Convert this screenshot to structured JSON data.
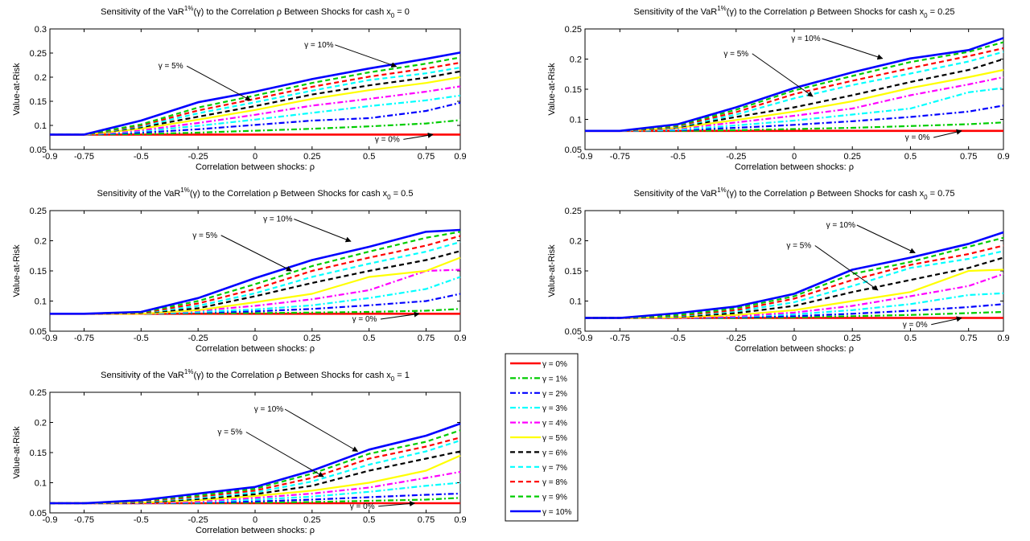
{
  "legend": {
    "entries": [
      "γ = 0%",
      "γ = 1%",
      "γ = 2%",
      "γ = 3%",
      "γ = 4%",
      "γ = 5%",
      "γ = 6%",
      "γ = 7%",
      "γ = 8%",
      "γ = 9%",
      "γ = 10%"
    ],
    "colors": [
      "#ff0000",
      "#00cc00",
      "#0000ff",
      "#00ffff",
      "#ff00ff",
      "#ffff00",
      "#000000",
      "#00ffff",
      "#ff0000",
      "#00cc00",
      "#0000ff"
    ],
    "dashes": [
      "solid",
      "dashdot",
      "dashdot",
      "dashdot",
      "dashdot",
      "solid",
      "dashed",
      "dashed",
      "dashed",
      "dashed",
      "solid"
    ]
  },
  "chart_data": [
    {
      "type": "line",
      "title_prefix": "Sensitivity of the VaR",
      "title_sup": "1%",
      "title_mid": "(γ) to the Correlation ρ Between Shocks for cash x",
      "title_sub": "0",
      "title_suffix": " = 0",
      "xlabel": "Correlation between shocks: ρ",
      "ylabel": "Value-at-Risk",
      "xlim": [
        -0.9,
        0.9
      ],
      "ylim": [
        0.05,
        0.3
      ],
      "xticks": [
        "-0.9",
        "-0.75",
        "-0.5",
        "-0.25",
        "0",
        "0.25",
        "0.5",
        "0.75",
        "0.9"
      ],
      "yticks": [
        "0.05",
        "0.1",
        "0.15",
        "0.2",
        "0.25",
        "0.3"
      ],
      "x": [
        -0.9,
        -0.75,
        -0.5,
        -0.25,
        0,
        0.25,
        0.5,
        0.75,
        0.9
      ],
      "series": [
        {
          "values": [
            0.081,
            0.081,
            0.081,
            0.081,
            0.081,
            0.081,
            0.081,
            0.081,
            0.081
          ]
        },
        {
          "values": [
            0.081,
            0.081,
            0.082,
            0.085,
            0.089,
            0.093,
            0.098,
            0.104,
            0.111
          ]
        },
        {
          "values": [
            0.081,
            0.081,
            0.085,
            0.092,
            0.101,
            0.11,
            0.115,
            0.13,
            0.147
          ]
        },
        {
          "values": [
            0.081,
            0.081,
            0.088,
            0.099,
            0.112,
            0.126,
            0.14,
            0.152,
            0.162
          ]
        },
        {
          "values": [
            0.081,
            0.081,
            0.09,
            0.105,
            0.122,
            0.141,
            0.155,
            0.17,
            0.181
          ]
        },
        {
          "values": [
            0.081,
            0.081,
            0.093,
            0.112,
            0.132,
            0.155,
            0.173,
            0.188,
            0.2
          ]
        },
        {
          "values": [
            0.081,
            0.081,
            0.096,
            0.118,
            0.14,
            0.164,
            0.183,
            0.199,
            0.212
          ]
        },
        {
          "values": [
            0.081,
            0.081,
            0.098,
            0.125,
            0.148,
            0.172,
            0.194,
            0.208,
            0.22
          ]
        },
        {
          "values": [
            0.081,
            0.081,
            0.1,
            0.131,
            0.155,
            0.18,
            0.201,
            0.218,
            0.23
          ]
        },
        {
          "values": [
            0.081,
            0.081,
            0.102,
            0.137,
            0.162,
            0.188,
            0.21,
            0.228,
            0.241
          ]
        },
        {
          "values": [
            0.081,
            0.081,
            0.11,
            0.148,
            0.17,
            0.196,
            0.218,
            0.238,
            0.251
          ]
        }
      ],
      "annotations": [
        {
          "text": "γ = 10%",
          "x": 0.28,
          "y": 0.262,
          "ax": 0.62,
          "ay": 0.222
        },
        {
          "text": "γ = 5%",
          "x": -0.37,
          "y": 0.218,
          "ax": -0.02,
          "ay": 0.152
        },
        {
          "text": "γ = 0%",
          "x": 0.58,
          "y": 0.066,
          "ax": 0.78,
          "ay": 0.081
        }
      ]
    },
    {
      "type": "line",
      "title_prefix": "Sensitivity of the VaR",
      "title_sup": "1%",
      "title_mid": "(γ) to the Correlation ρ Between Shocks for cash x",
      "title_sub": "0",
      "title_suffix": " = 0.25",
      "xlabel": "Correlation between shocks: ρ",
      "ylabel": "Value-at-Risk",
      "xlim": [
        -0.9,
        0.9
      ],
      "ylim": [
        0.05,
        0.25
      ],
      "xticks": [
        "-0.9",
        "-0.75",
        "-0.5",
        "-0.25",
        "0",
        "0.25",
        "0.5",
        "0.75",
        "0.9"
      ],
      "yticks": [
        "0.05",
        "0.1",
        "0.15",
        "0.2",
        "0.25"
      ],
      "x": [
        -0.9,
        -0.75,
        -0.5,
        -0.25,
        0,
        0.25,
        0.5,
        0.75,
        0.9
      ],
      "series": [
        {
          "values": [
            0.081,
            0.081,
            0.081,
            0.081,
            0.081,
            0.081,
            0.081,
            0.081,
            0.081
          ]
        },
        {
          "values": [
            0.081,
            0.081,
            0.081,
            0.082,
            0.084,
            0.086,
            0.089,
            0.092,
            0.095
          ]
        },
        {
          "values": [
            0.081,
            0.081,
            0.082,
            0.086,
            0.091,
            0.097,
            0.104,
            0.113,
            0.123
          ]
        },
        {
          "values": [
            0.081,
            0.081,
            0.083,
            0.09,
            0.098,
            0.108,
            0.118,
            0.145,
            0.152
          ]
        },
        {
          "values": [
            0.081,
            0.081,
            0.085,
            0.095,
            0.106,
            0.118,
            0.14,
            0.158,
            0.17
          ]
        },
        {
          "values": [
            0.081,
            0.081,
            0.086,
            0.099,
            0.113,
            0.13,
            0.152,
            0.17,
            0.182
          ]
        },
        {
          "values": [
            0.081,
            0.081,
            0.087,
            0.104,
            0.12,
            0.14,
            0.162,
            0.182,
            0.2
          ]
        },
        {
          "values": [
            0.081,
            0.081,
            0.088,
            0.108,
            0.135,
            0.157,
            0.176,
            0.196,
            0.212
          ]
        },
        {
          "values": [
            0.081,
            0.081,
            0.089,
            0.112,
            0.142,
            0.164,
            0.185,
            0.205,
            0.218
          ]
        },
        {
          "values": [
            0.081,
            0.081,
            0.09,
            0.116,
            0.148,
            0.172,
            0.195,
            0.212,
            0.228
          ]
        },
        {
          "values": [
            0.081,
            0.081,
            0.092,
            0.12,
            0.152,
            0.178,
            0.201,
            0.215,
            0.235
          ]
        }
      ],
      "annotations": [
        {
          "text": "γ = 10%",
          "x": 0.05,
          "y": 0.23,
          "ax": 0.38,
          "ay": 0.201
        },
        {
          "text": "γ = 5%",
          "x": -0.25,
          "y": 0.205,
          "ax": 0.08,
          "ay": 0.138
        },
        {
          "text": "γ = 0%",
          "x": 0.53,
          "y": 0.066,
          "ax": 0.72,
          "ay": 0.081
        }
      ]
    },
    {
      "type": "line",
      "title_prefix": "Sensitivity of the VaR",
      "title_sup": "1%",
      "title_mid": "(γ) to the Correlation ρ Between Shocks for cash x",
      "title_sub": "0",
      "title_suffix": " = 0.5",
      "xlabel": "Correlation between shocks: ρ",
      "ylabel": "Value-at-Risk",
      "xlim": [
        -0.9,
        0.9
      ],
      "ylim": [
        0.05,
        0.25
      ],
      "xticks": [
        "-0.9",
        "-0.75",
        "-0.5",
        "-0.25",
        "0",
        "0.25",
        "0.5",
        "0.75",
        "0.9"
      ],
      "yticks": [
        "0.05",
        "0.1",
        "0.15",
        "0.2",
        "0.25"
      ],
      "x": [
        -0.9,
        -0.75,
        -0.5,
        -0.25,
        0,
        0.25,
        0.5,
        0.75,
        0.9
      ],
      "series": [
        {
          "values": [
            0.079,
            0.079,
            0.079,
            0.079,
            0.079,
            0.079,
            0.079,
            0.079,
            0.079
          ]
        },
        {
          "values": [
            0.079,
            0.079,
            0.079,
            0.08,
            0.08,
            0.081,
            0.082,
            0.084,
            0.087
          ]
        },
        {
          "values": [
            0.079,
            0.079,
            0.079,
            0.081,
            0.083,
            0.087,
            0.093,
            0.1,
            0.112
          ]
        },
        {
          "values": [
            0.079,
            0.079,
            0.079,
            0.082,
            0.086,
            0.093,
            0.105,
            0.12,
            0.14
          ]
        },
        {
          "values": [
            0.079,
            0.079,
            0.079,
            0.084,
            0.092,
            0.103,
            0.118,
            0.15,
            0.152
          ]
        },
        {
          "values": [
            0.079,
            0.079,
            0.079,
            0.085,
            0.098,
            0.112,
            0.14,
            0.15,
            0.172
          ]
        },
        {
          "values": [
            0.079,
            0.079,
            0.08,
            0.088,
            0.108,
            0.13,
            0.15,
            0.168,
            0.183
          ]
        },
        {
          "values": [
            0.079,
            0.079,
            0.08,
            0.092,
            0.113,
            0.14,
            0.162,
            0.182,
            0.198
          ]
        },
        {
          "values": [
            0.079,
            0.079,
            0.08,
            0.096,
            0.12,
            0.15,
            0.172,
            0.192,
            0.208
          ]
        },
        {
          "values": [
            0.079,
            0.079,
            0.081,
            0.1,
            0.128,
            0.158,
            0.182,
            0.205,
            0.215
          ]
        },
        {
          "values": [
            0.079,
            0.079,
            0.082,
            0.105,
            0.138,
            0.168,
            0.19,
            0.215,
            0.218
          ]
        }
      ],
      "annotations": [
        {
          "text": "γ = 10%",
          "x": 0.1,
          "y": 0.232,
          "ax": 0.42,
          "ay": 0.199
        },
        {
          "text": "γ = 5%",
          "x": -0.22,
          "y": 0.205,
          "ax": 0.16,
          "ay": 0.15
        },
        {
          "text": "γ = 0%",
          "x": 0.48,
          "y": 0.066,
          "ax": 0.72,
          "ay": 0.079
        }
      ]
    },
    {
      "type": "line",
      "title_prefix": "Sensitivity of the VaR",
      "title_sup": "1%",
      "title_mid": "(γ) to the Correlation ρ Between Shocks for cash x",
      "title_sub": "0",
      "title_suffix": " = 0.75",
      "xlabel": "Correlation between shocks: ρ",
      "ylabel": "Value-at-Risk",
      "xlim": [
        -0.9,
        0.9
      ],
      "ylim": [
        0.05,
        0.25
      ],
      "xticks": [
        "-0.9",
        "-0.75",
        "-0.5",
        "-0.25",
        "0",
        "0.25",
        "0.5",
        "0.75",
        "0.9"
      ],
      "yticks": [
        "0.05",
        "0.1",
        "0.15",
        "0.2",
        "0.25"
      ],
      "x": [
        -0.9,
        -0.75,
        -0.5,
        -0.25,
        0,
        0.25,
        0.5,
        0.75,
        0.9
      ],
      "series": [
        {
          "values": [
            0.072,
            0.072,
            0.072,
            0.072,
            0.072,
            0.072,
            0.072,
            0.072,
            0.072
          ]
        },
        {
          "values": [
            0.072,
            0.072,
            0.072,
            0.072,
            0.073,
            0.075,
            0.077,
            0.08,
            0.082
          ]
        },
        {
          "values": [
            0.072,
            0.072,
            0.072,
            0.073,
            0.075,
            0.079,
            0.084,
            0.09,
            0.095
          ]
        },
        {
          "values": [
            0.072,
            0.072,
            0.072,
            0.074,
            0.078,
            0.085,
            0.095,
            0.11,
            0.113
          ]
        },
        {
          "values": [
            0.072,
            0.072,
            0.072,
            0.075,
            0.081,
            0.092,
            0.108,
            0.125,
            0.145
          ]
        },
        {
          "values": [
            0.072,
            0.072,
            0.073,
            0.077,
            0.085,
            0.1,
            0.115,
            0.15,
            0.152
          ]
        },
        {
          "values": [
            0.072,
            0.072,
            0.074,
            0.08,
            0.092,
            0.115,
            0.135,
            0.155,
            0.172
          ]
        },
        {
          "values": [
            0.072,
            0.072,
            0.075,
            0.083,
            0.098,
            0.125,
            0.155,
            0.17,
            0.183
          ]
        },
        {
          "values": [
            0.072,
            0.072,
            0.076,
            0.085,
            0.104,
            0.135,
            0.16,
            0.178,
            0.192
          ]
        },
        {
          "values": [
            0.072,
            0.072,
            0.077,
            0.088,
            0.108,
            0.145,
            0.165,
            0.19,
            0.205
          ]
        },
        {
          "values": [
            0.072,
            0.072,
            0.08,
            0.091,
            0.112,
            0.152,
            0.172,
            0.195,
            0.214
          ]
        }
      ],
      "annotations": [
        {
          "text": "γ = 10%",
          "x": 0.2,
          "y": 0.222,
          "ax": 0.52,
          "ay": 0.18
        },
        {
          "text": "γ = 5%",
          "x": 0.02,
          "y": 0.188,
          "ax": 0.36,
          "ay": 0.118
        },
        {
          "text": "γ = 0%",
          "x": 0.52,
          "y": 0.057,
          "ax": 0.72,
          "ay": 0.072
        }
      ]
    },
    {
      "type": "line",
      "title_prefix": "Sensitivity of the VaR",
      "title_sup": "1%",
      "title_mid": "(γ) to the Correlation ρ Between Shocks for cash x",
      "title_sub": "0",
      "title_suffix": " = 1",
      "xlabel": "Correlation between shocks: ρ",
      "ylabel": "Value-at-Risk",
      "xlim": [
        -0.9,
        0.9
      ],
      "ylim": [
        0.05,
        0.25
      ],
      "xticks": [
        "-0.9",
        "-0.75",
        "-0.5",
        "-0.25",
        "0",
        "0.25",
        "0.5",
        "0.75",
        "0.9"
      ],
      "yticks": [
        "0.05",
        "0.1",
        "0.15",
        "0.2",
        "0.25"
      ],
      "x": [
        -0.9,
        -0.75,
        -0.5,
        -0.25,
        0,
        0.25,
        0.5,
        0.75,
        0.9
      ],
      "series": [
        {
          "values": [
            0.066,
            0.066,
            0.066,
            0.066,
            0.066,
            0.066,
            0.066,
            0.066,
            0.066
          ]
        },
        {
          "values": [
            0.066,
            0.066,
            0.066,
            0.066,
            0.067,
            0.068,
            0.07,
            0.072,
            0.075
          ]
        },
        {
          "values": [
            0.066,
            0.066,
            0.066,
            0.067,
            0.069,
            0.072,
            0.076,
            0.08,
            0.082
          ]
        },
        {
          "values": [
            0.066,
            0.066,
            0.066,
            0.068,
            0.072,
            0.077,
            0.085,
            0.095,
            0.1
          ]
        },
        {
          "values": [
            0.066,
            0.066,
            0.066,
            0.069,
            0.075,
            0.082,
            0.092,
            0.108,
            0.118
          ]
        },
        {
          "values": [
            0.066,
            0.066,
            0.067,
            0.071,
            0.078,
            0.087,
            0.1,
            0.12,
            0.145
          ]
        },
        {
          "values": [
            0.066,
            0.066,
            0.067,
            0.073,
            0.081,
            0.095,
            0.12,
            0.14,
            0.152
          ]
        },
        {
          "values": [
            0.066,
            0.066,
            0.068,
            0.075,
            0.084,
            0.102,
            0.13,
            0.152,
            0.17
          ]
        },
        {
          "values": [
            0.066,
            0.066,
            0.069,
            0.077,
            0.087,
            0.108,
            0.14,
            0.16,
            0.175
          ]
        },
        {
          "values": [
            0.066,
            0.066,
            0.07,
            0.079,
            0.09,
            0.115,
            0.148,
            0.168,
            0.187
          ]
        },
        {
          "values": [
            0.066,
            0.066,
            0.071,
            0.082,
            0.093,
            0.12,
            0.155,
            0.178,
            0.198
          ]
        }
      ],
      "annotations": [
        {
          "text": "γ = 10%",
          "x": 0.06,
          "y": 0.218,
          "ax": 0.45,
          "ay": 0.152
        },
        {
          "text": "γ = 5%",
          "x": -0.11,
          "y": 0.18,
          "ax": 0.3,
          "ay": 0.11
        },
        {
          "text": "γ = 0%",
          "x": 0.47,
          "y": 0.057,
          "ax": 0.7,
          "ay": 0.066
        }
      ]
    }
  ]
}
